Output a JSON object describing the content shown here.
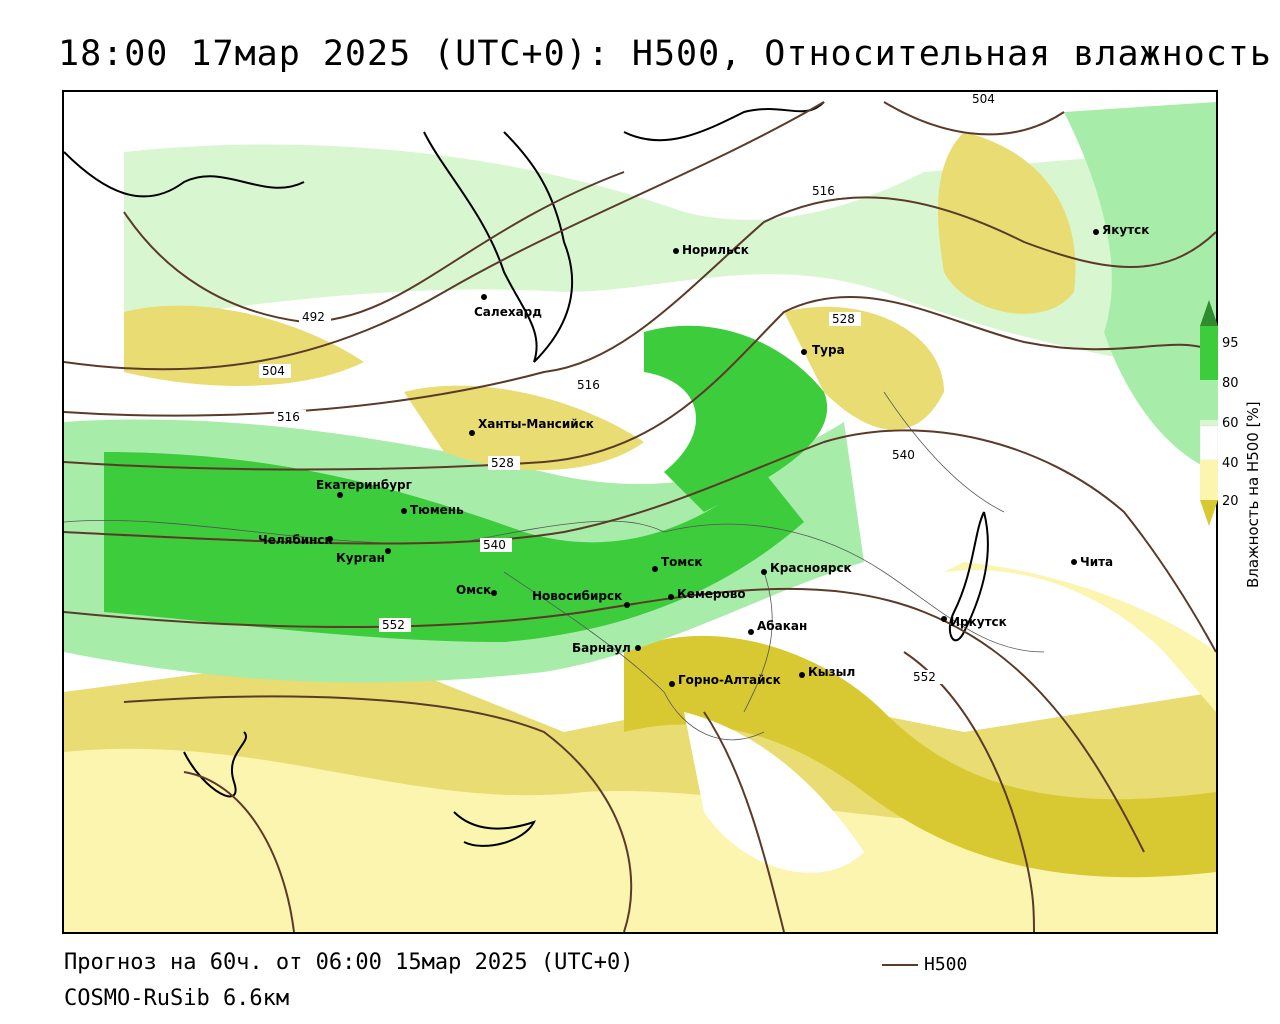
{
  "title": "18:00 17мар 2025 (UTC+0): H500, Относительная влажность",
  "footer": {
    "forecast": "Прогноз на 60ч. от 06:00 15мар 2025 (UTC+0)",
    "model": "COSMO-RuSib 6.6км",
    "legend_label": "H500"
  },
  "colorbar": {
    "title": "Влажность на H500 [%]",
    "ticks": [
      "95",
      "80",
      "60",
      "40",
      "20"
    ],
    "colors": {
      "c95": "#2e8b2e",
      "c80": "#3ccc3c",
      "c60": "#a8ecaa",
      "c50": "#d8f7d0",
      "c40": "#ffffff",
      "c30": "#fbf5b0",
      "c20": "#e8dc72",
      "c10": "#d8c932"
    }
  },
  "colors": {
    "isohypse": "#5b3a29",
    "coast": "#000000"
  },
  "isohypse_labels": [
    "504",
    "516",
    "492",
    "528",
    "504",
    "516",
    "516",
    "528",
    "540",
    "540",
    "552",
    "552"
  ],
  "cities": [
    {
      "name": "Якутск"
    },
    {
      "name": "Норильск"
    },
    {
      "name": "Салехард"
    },
    {
      "name": "Тура"
    },
    {
      "name": "Ханты-Мансийск"
    },
    {
      "name": "Екатеринбург"
    },
    {
      "name": "Тюмень"
    },
    {
      "name": "Челябинск"
    },
    {
      "name": "Курган"
    },
    {
      "name": "Омск"
    },
    {
      "name": "Новосибирск"
    },
    {
      "name": "Томск"
    },
    {
      "name": "Красноярск"
    },
    {
      "name": "Кемерово"
    },
    {
      "name": "Абакан"
    },
    {
      "name": "Барнаул"
    },
    {
      "name": "Горно-Алтайск"
    },
    {
      "name": "Кызыл"
    },
    {
      "name": "Иркутск"
    },
    {
      "name": "Чита"
    }
  ]
}
